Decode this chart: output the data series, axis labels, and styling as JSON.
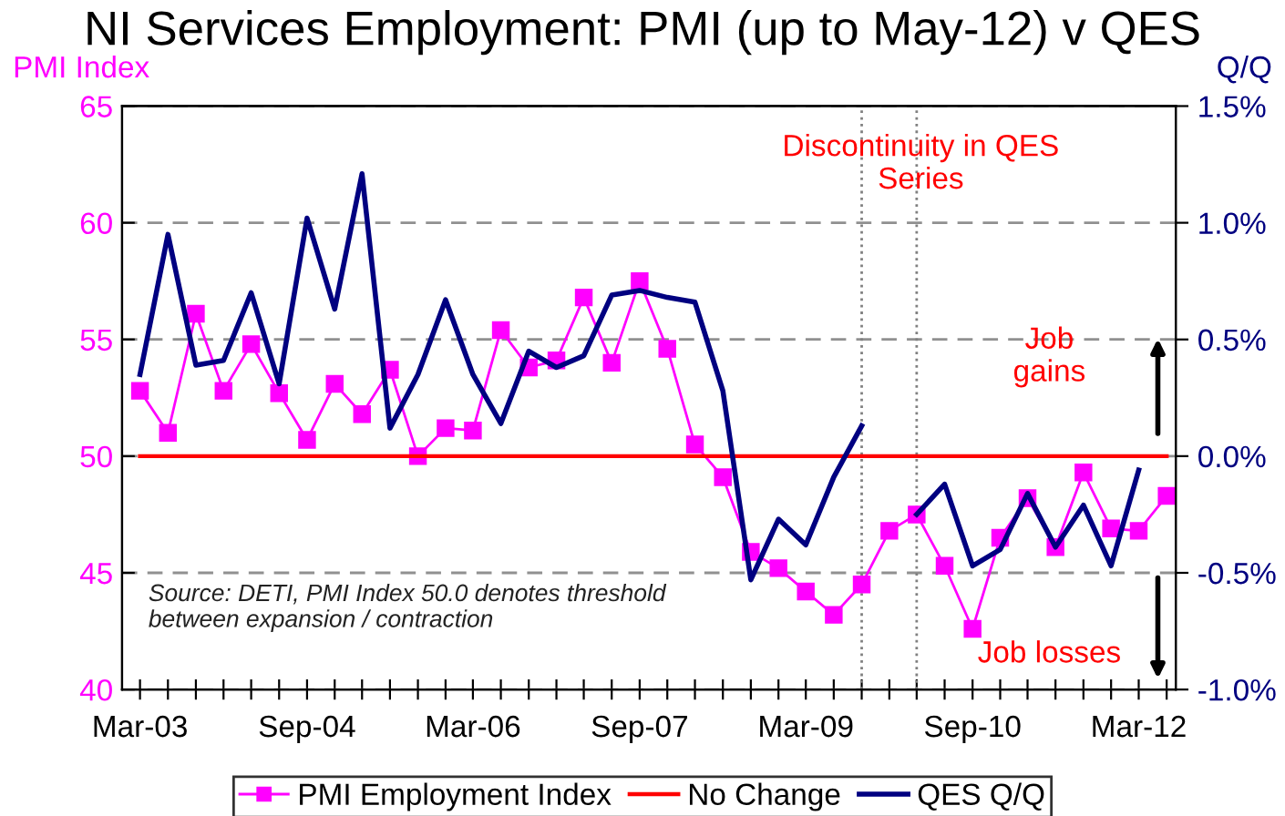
{
  "chart_data": {
    "type": "line",
    "title": "NI Services Employment: PMI (up to May-12) v QES",
    "ylabel": "PMI Index",
    "y2label": "Q/Q",
    "x": [
      "2003-03",
      "2003-06",
      "2003-09",
      "2003-12",
      "2004-03",
      "2004-06",
      "2004-09",
      "2004-12",
      "2005-03",
      "2005-06",
      "2005-09",
      "2005-12",
      "2006-03",
      "2006-06",
      "2006-09",
      "2006-12",
      "2007-03",
      "2007-06",
      "2007-09",
      "2007-12",
      "2008-03",
      "2008-06",
      "2008-09",
      "2008-12",
      "2009-03",
      "2009-06",
      "2009-09",
      "2009-12",
      "2010-03",
      "2010-06",
      "2010-09",
      "2010-12",
      "2011-03",
      "2011-06",
      "2011-09",
      "2011-12",
      "2012-03",
      "2012-06"
    ],
    "series": [
      {
        "name": "PMI Employment Index",
        "color": "#ff00ff",
        "marker": "square",
        "values": [
          52.8,
          51.0,
          56.1,
          52.8,
          54.8,
          52.7,
          50.7,
          53.1,
          51.8,
          53.7,
          50.0,
          51.2,
          51.1,
          55.4,
          53.8,
          54.1,
          56.8,
          54.0,
          57.5,
          54.6,
          50.5,
          49.1,
          45.9,
          45.2,
          44.2,
          43.2,
          44.5,
          46.8,
          47.5,
          45.3,
          42.6,
          46.5,
          48.2,
          46.1,
          49.3,
          46.9,
          46.8,
          48.3
        ]
      },
      {
        "name": "No Change",
        "color": "#ff0000",
        "values": [
          50,
          50,
          50,
          50,
          50,
          50,
          50,
          50,
          50,
          50,
          50,
          50,
          50,
          50,
          50,
          50,
          50,
          50,
          50,
          50,
          50,
          50,
          50,
          50,
          50,
          50,
          50,
          50,
          50,
          50,
          50,
          50,
          50,
          50,
          50,
          50,
          50,
          50
        ]
      },
      {
        "name": "QES Q/Q",
        "color": "#000080",
        "axis": "y2",
        "values": [
          0.35,
          0.95,
          0.39,
          0.41,
          0.7,
          0.31,
          1.02,
          0.63,
          1.21,
          0.12,
          0.35,
          0.67,
          0.35,
          0.14,
          0.45,
          0.38,
          0.43,
          0.69,
          0.71,
          0.68,
          0.66,
          0.28,
          -0.53,
          -0.27,
          -0.38,
          -0.09,
          0.13,
          null,
          -0.25,
          -0.12,
          -0.47,
          -0.4,
          -0.16,
          -0.39,
          -0.21,
          -0.47,
          -0.06,
          null
        ]
      }
    ],
    "xlim": [
      "2003-01-15",
      "2012-07-15"
    ],
    "xticks": [
      {
        "value": "2003-03",
        "label": "Mar-03"
      },
      {
        "value": "2003-06",
        "label": null
      },
      {
        "value": "2003-09",
        "label": null
      },
      {
        "value": "2003-12",
        "label": null
      },
      {
        "value": "2004-03",
        "label": null
      },
      {
        "value": "2004-06",
        "label": null
      },
      {
        "value": "2004-09",
        "label": "Sep-04"
      },
      {
        "value": "2004-12",
        "label": null
      },
      {
        "value": "2005-03",
        "label": null
      },
      {
        "value": "2005-06",
        "label": null
      },
      {
        "value": "2005-09",
        "label": null
      },
      {
        "value": "2005-12",
        "label": null
      },
      {
        "value": "2006-03",
        "label": "Mar-06"
      },
      {
        "value": "2006-06",
        "label": null
      },
      {
        "value": "2006-09",
        "label": null
      },
      {
        "value": "2006-12",
        "label": null
      },
      {
        "value": "2007-03",
        "label": null
      },
      {
        "value": "2007-06",
        "label": null
      },
      {
        "value": "2007-09",
        "label": "Sep-07"
      },
      {
        "value": "2007-12",
        "label": null
      },
      {
        "value": "2008-03",
        "label": null
      },
      {
        "value": "2008-06",
        "label": null
      },
      {
        "value": "2008-09",
        "label": null
      },
      {
        "value": "2008-12",
        "label": null
      },
      {
        "value": "2009-03",
        "label": "Mar-09"
      },
      {
        "value": "2009-06",
        "label": null
      },
      {
        "value": "2009-09",
        "label": null
      },
      {
        "value": "2009-12",
        "label": null
      },
      {
        "value": "2010-03",
        "label": null
      },
      {
        "value": "2010-06",
        "label": null
      },
      {
        "value": "2010-09",
        "label": "Sep-10"
      },
      {
        "value": "2010-12",
        "label": null
      },
      {
        "value": "2011-03",
        "label": null
      },
      {
        "value": "2011-06",
        "label": null
      },
      {
        "value": "2011-09",
        "label": null
      },
      {
        "value": "2011-12",
        "label": null
      },
      {
        "value": "2012-03",
        "label": "Mar-12"
      },
      {
        "value": "2012-06",
        "label": null
      }
    ],
    "ylim": [
      40,
      65
    ],
    "yticks": [
      40,
      45,
      50,
      55,
      60,
      65
    ],
    "y2lim": [
      -1.0,
      1.5
    ],
    "y2ticks": [
      {
        "value": -1.0,
        "label": "-1.0%"
      },
      {
        "value": -0.5,
        "label": "-0.5%"
      },
      {
        "value": 0.0,
        "label": "0.0%"
      },
      {
        "value": 0.5,
        "label": "0.5%"
      },
      {
        "value": 1.0,
        "label": "1.0%"
      },
      {
        "value": 1.5,
        "label": "1.5%"
      }
    ],
    "ref_lines": [
      {
        "axis": "x",
        "value": "2009-09",
        "color": "#808080",
        "line_style": "dotted"
      },
      {
        "axis": "x",
        "value": "2010-03",
        "color": "#808080",
        "line_style": "dotted"
      }
    ],
    "annotations": [
      "Discontinuity in QES Series",
      "Job gains",
      "Job losses",
      "Source: DETI, PMI Index 50.0 denotes threshold between expansion / contraction"
    ],
    "grid": "y",
    "line_style": "solid",
    "legend": "bottom"
  }
}
